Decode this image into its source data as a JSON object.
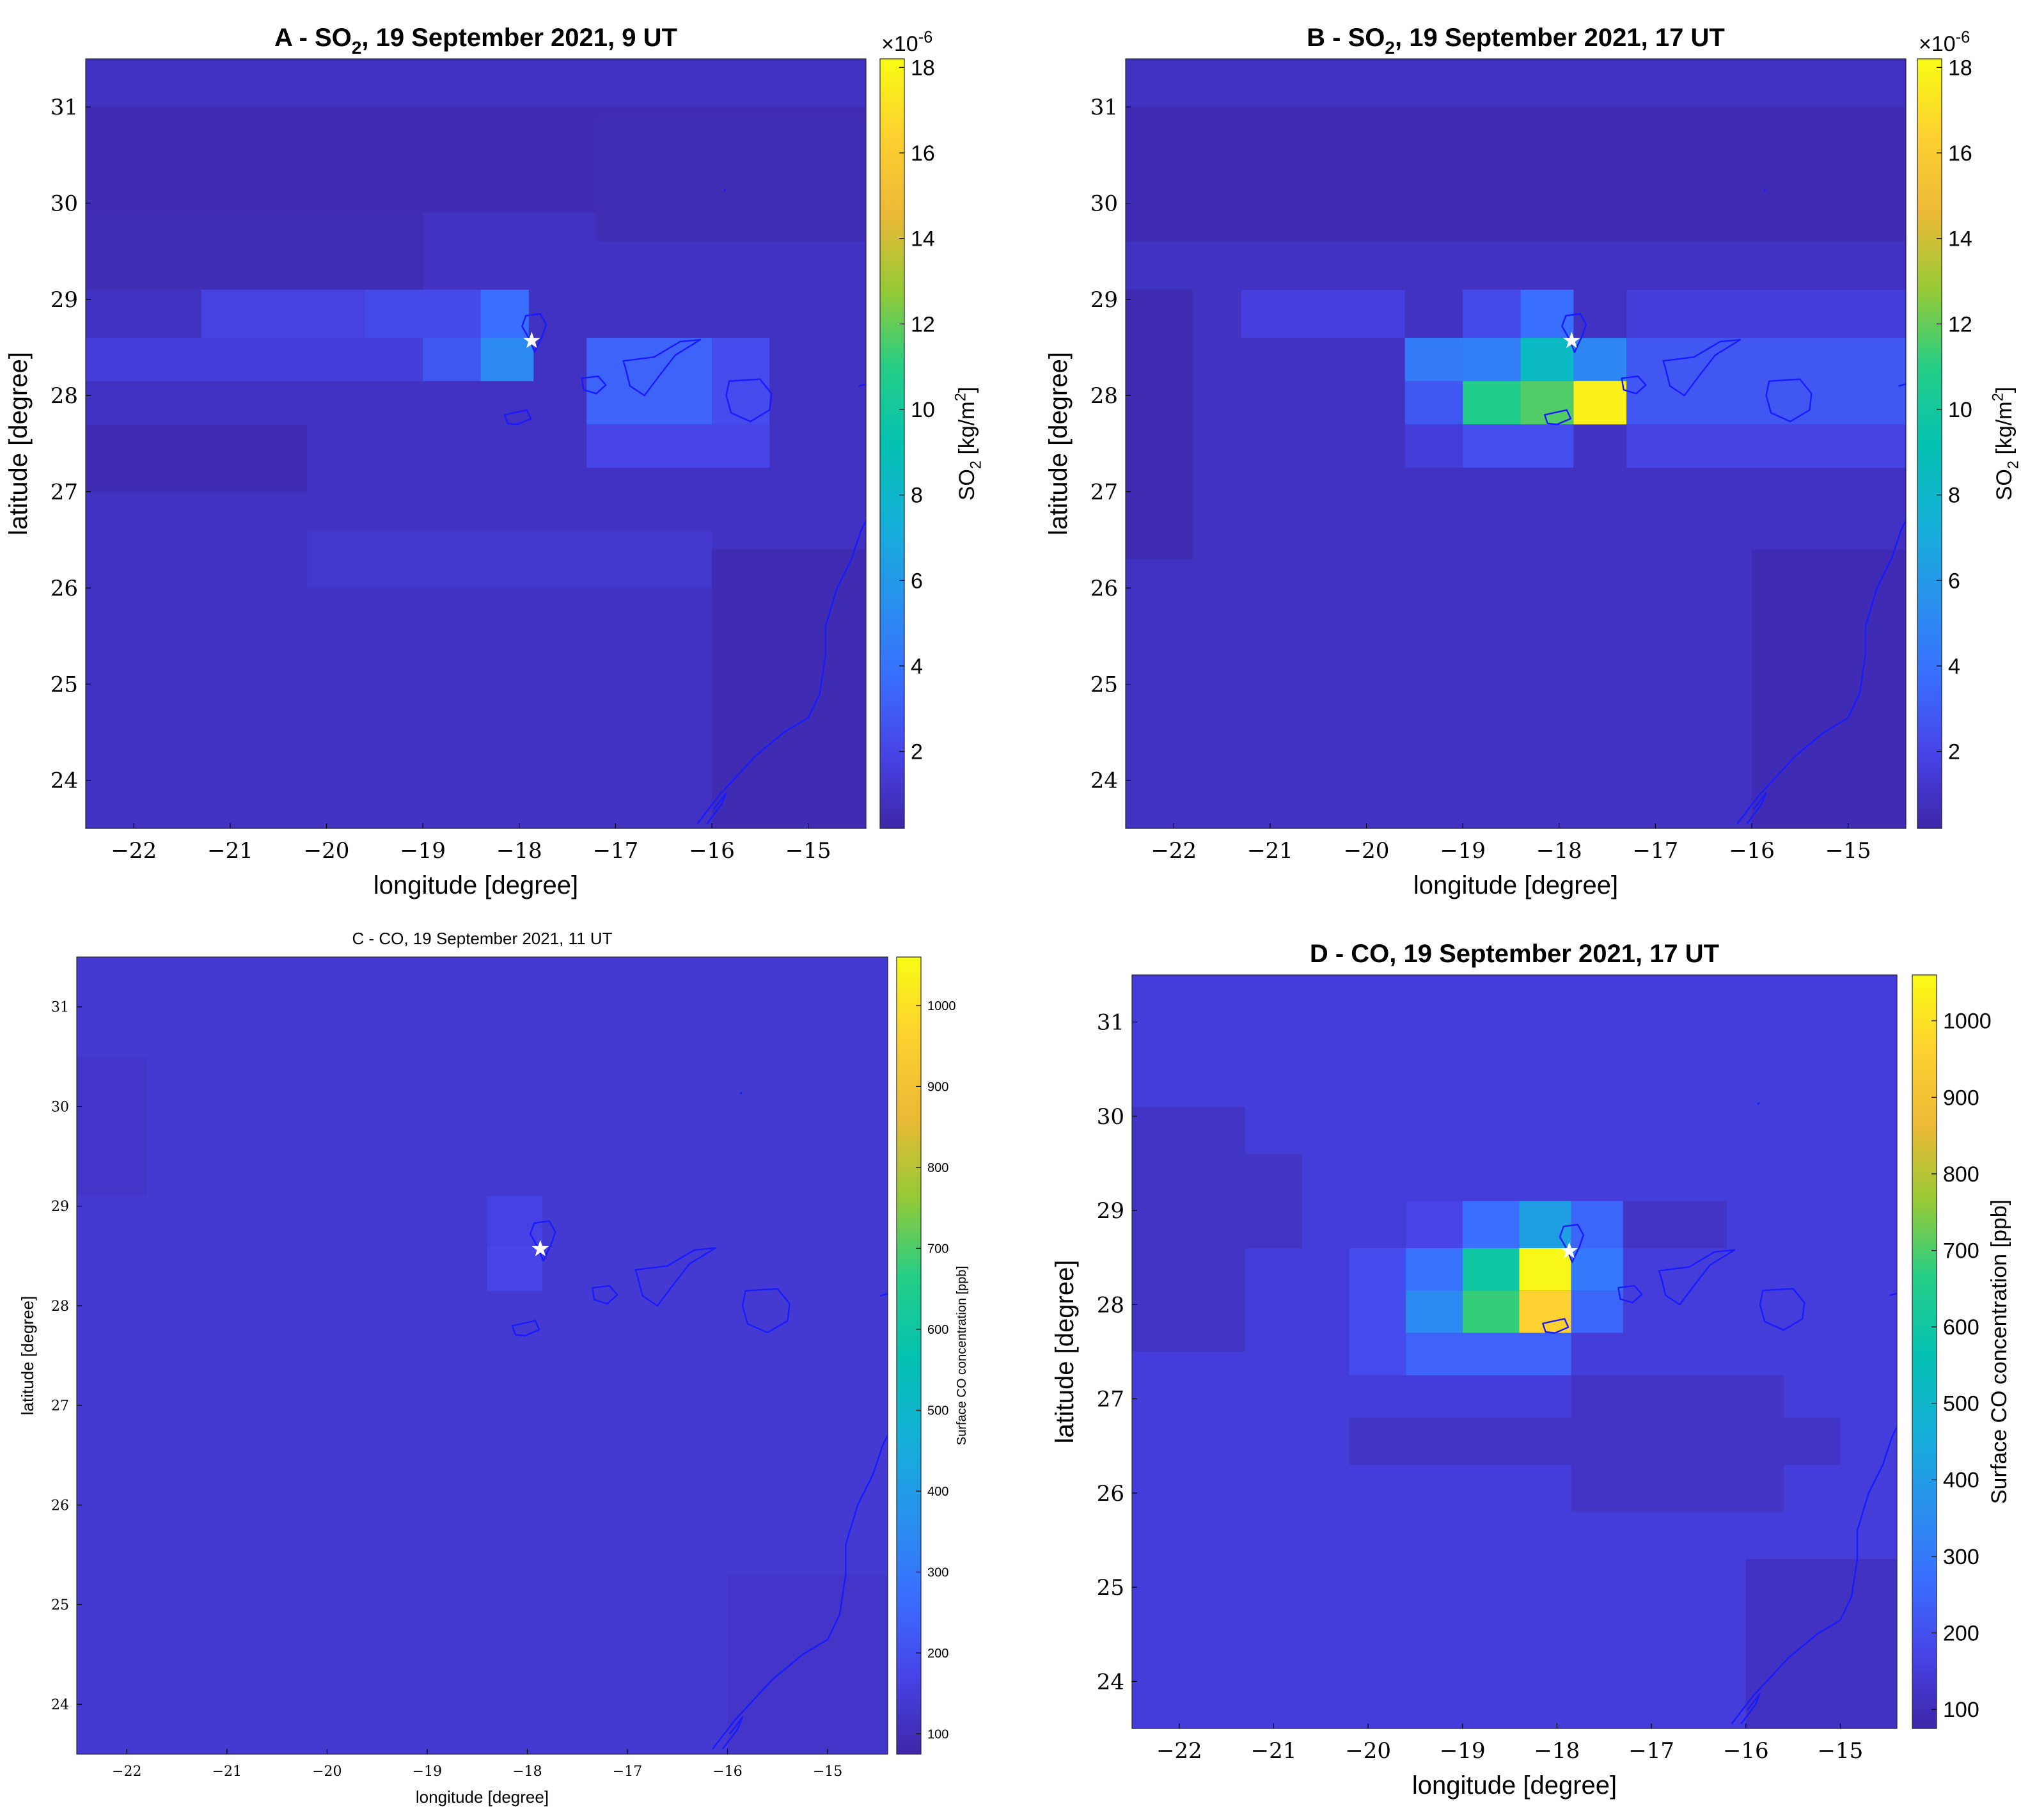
{
  "chart_data": [
    {
      "type": "heatmap",
      "title": "A - SO₂, 19 September 2021, 9 UT",
      "title_parts": {
        "pre": "A - SO",
        "sub": "2",
        "post": ", 19 September 2021, 9 UT"
      },
      "xlabel": "longitude [degree]",
      "ylabel": "latitude [degree]",
      "colorbar_label": "SO₂ [kg/m²]",
      "colorbar_label_parts": {
        "pre": "SO",
        "sub": "2",
        "mid": " [kg/m",
        "sup": "2",
        "post": "]"
      },
      "colorbar_exponent": "×10⁻⁶",
      "colorbar_exponent_parts": {
        "base": "×10",
        "sup": "-6"
      },
      "clim": [
        0.2,
        18.2
      ],
      "colorbar_ticks": [
        "2",
        "4",
        "6",
        "8",
        "10",
        "12",
        "14",
        "16",
        "18"
      ],
      "xlim": [
        -22.5,
        -14.4
      ],
      "ylim": [
        23.5,
        31.5
      ],
      "x_ticks": [
        "−22",
        "−21",
        "−20",
        "−19",
        "−18",
        "−17",
        "−16",
        "−15"
      ],
      "y_ticks": [
        "24",
        "25",
        "26",
        "27",
        "28",
        "29",
        "30",
        "31"
      ],
      "vent_marker": {
        "lon": -17.87,
        "lat": 28.57
      },
      "cells": [
        {
          "lon": [
            -22.5,
            -14.4
          ],
          "lat": [
            23.5,
            31.5
          ],
          "value": 0.9
        },
        {
          "lon": [
            -22.5,
            -14.4
          ],
          "lat": [
            29.9,
            31.0
          ],
          "value": 0.55
        },
        {
          "lon": [
            -22.5,
            -19.0
          ],
          "lat": [
            29.1,
            29.9
          ],
          "value": 0.6
        },
        {
          "lon": [
            -17.2,
            -14.4
          ],
          "lat": [
            29.6,
            30.9
          ],
          "value": 0.6
        },
        {
          "lon": [
            -21.3,
            -19.6
          ],
          "lat": [
            28.6,
            29.1
          ],
          "value": 1.8
        },
        {
          "lon": [
            -19.6,
            -18.4
          ],
          "lat": [
            28.6,
            29.1
          ],
          "value": 2.2
        },
        {
          "lon": [
            -18.4,
            -17.9
          ],
          "lat": [
            28.6,
            29.1
          ],
          "value": 3.8
        },
        {
          "lon": [
            -22.5,
            -19.0
          ],
          "lat": [
            28.15,
            28.6
          ],
          "value": 1.6
        },
        {
          "lon": [
            -19.0,
            -18.4
          ],
          "lat": [
            28.15,
            28.6
          ],
          "value": 2.8
        },
        {
          "lon": [
            -18.4,
            -17.85
          ],
          "lat": [
            28.15,
            28.6
          ],
          "value": 5.2
        },
        {
          "lon": [
            -17.3,
            -16.0
          ],
          "lat": [
            27.7,
            28.6
          ],
          "value": 3.3
        },
        {
          "lon": [
            -16.0,
            -15.4
          ],
          "lat": [
            27.7,
            28.6
          ],
          "value": 2.3
        },
        {
          "lon": [
            -17.3,
            -15.4
          ],
          "lat": [
            27.25,
            27.7
          ],
          "value": 2.0
        },
        {
          "lon": [
            -22.5,
            -20.2
          ],
          "lat": [
            27.0,
            27.7
          ],
          "value": 0.5
        },
        {
          "lon": [
            -20.2,
            -16.0
          ],
          "lat": [
            26.0,
            26.6
          ],
          "value": 1.2
        },
        {
          "lon": [
            -16.0,
            -14.4
          ],
          "lat": [
            23.5,
            26.4
          ],
          "value": 0.5
        }
      ]
    },
    {
      "type": "heatmap",
      "title": "B - SO₂, 19 September 2021, 17 UT",
      "title_parts": {
        "pre": "B - SO",
        "sub": "2",
        "post": ", 19 September 2021, 17 UT"
      },
      "xlabel": "longitude [degree]",
      "ylabel": "latitude [degree]",
      "colorbar_label": "SO₂ [kg/m²]",
      "colorbar_label_parts": {
        "pre": "SO",
        "sub": "2",
        "mid": " [kg/m",
        "sup": "2",
        "post": "]"
      },
      "colorbar_exponent": "×10⁻⁶",
      "colorbar_exponent_parts": {
        "base": "×10",
        "sup": "-6"
      },
      "clim": [
        0.2,
        18.2
      ],
      "colorbar_ticks": [
        "2",
        "4",
        "6",
        "8",
        "10",
        "12",
        "14",
        "16",
        "18"
      ],
      "xlim": [
        -22.5,
        -14.4
      ],
      "ylim": [
        23.5,
        31.5
      ],
      "x_ticks": [
        "−22",
        "−21",
        "−20",
        "−19",
        "−18",
        "−17",
        "−16",
        "−15"
      ],
      "y_ticks": [
        "24",
        "25",
        "26",
        "27",
        "28",
        "29",
        "30",
        "31"
      ],
      "vent_marker": {
        "lon": -17.87,
        "lat": 28.57
      },
      "cells": [
        {
          "lon": [
            -22.5,
            -14.4
          ],
          "lat": [
            23.5,
            31.5
          ],
          "value": 0.9
        },
        {
          "lon": [
            -22.5,
            -14.4
          ],
          "lat": [
            29.6,
            31.0
          ],
          "value": 0.55
        },
        {
          "lon": [
            -22.5,
            -21.8
          ],
          "lat": [
            26.3,
            29.1
          ],
          "value": 0.5
        },
        {
          "lon": [
            -21.3,
            -19.6
          ],
          "lat": [
            28.6,
            29.1
          ],
          "value": 1.7
        },
        {
          "lon": [
            -17.3,
            -14.4
          ],
          "lat": [
            28.6,
            29.1
          ],
          "value": 1.6
        },
        {
          "lon": [
            -19.6,
            -19.0
          ],
          "lat": [
            27.25,
            28.6
          ],
          "value": 2.0
        },
        {
          "lon": [
            -19.0,
            -18.4
          ],
          "lat": [
            28.6,
            29.1
          ],
          "value": 2.2
        },
        {
          "lon": [
            -18.4,
            -17.85
          ],
          "lat": [
            28.6,
            29.1
          ],
          "value": 3.8
        },
        {
          "lon": [
            -19.6,
            -19.0
          ],
          "lat": [
            28.15,
            28.6
          ],
          "value": 4.4
        },
        {
          "lon": [
            -19.0,
            -18.4
          ],
          "lat": [
            28.15,
            28.6
          ],
          "value": 4.6
        },
        {
          "lon": [
            -18.4,
            -17.85
          ],
          "lat": [
            28.15,
            28.6
          ],
          "value": 8.4
        },
        {
          "lon": [
            -17.85,
            -17.3
          ],
          "lat": [
            28.15,
            28.6
          ],
          "value": 5.0
        },
        {
          "lon": [
            -19.6,
            -19.0
          ],
          "lat": [
            27.7,
            28.15
          ],
          "value": 2.8
        },
        {
          "lon": [
            -19.0,
            -18.4
          ],
          "lat": [
            27.7,
            28.15
          ],
          "value": 10.8
        },
        {
          "lon": [
            -18.4,
            -17.85
          ],
          "lat": [
            27.7,
            28.15
          ],
          "value": 11.7
        },
        {
          "lon": [
            -17.85,
            -17.3
          ],
          "lat": [
            27.7,
            28.15
          ],
          "value": 17.8
        },
        {
          "lon": [
            -17.3,
            -14.4
          ],
          "lat": [
            27.7,
            28.6
          ],
          "value": 2.8
        },
        {
          "lon": [
            -19.6,
            -19.0
          ],
          "lat": [
            27.25,
            27.7
          ],
          "value": 1.6
        },
        {
          "lon": [
            -19.0,
            -17.85
          ],
          "lat": [
            27.25,
            27.7
          ],
          "value": 2.4
        },
        {
          "lon": [
            -17.3,
            -14.4
          ],
          "lat": [
            27.25,
            27.7
          ],
          "value": 1.8
        },
        {
          "lon": [
            -16.0,
            -14.4
          ],
          "lat": [
            23.5,
            26.4
          ],
          "value": 0.55
        }
      ]
    },
    {
      "type": "heatmap",
      "title": "C - CO, 19 September 2021, 11 UT",
      "xlabel": "longitude [degree]",
      "ylabel": "latitude [degree]",
      "colorbar_label": "Surface CO concentration [ppb]",
      "clim": [
        75,
        1060
      ],
      "colorbar_ticks": [
        "100",
        "200",
        "300",
        "400",
        "500",
        "600",
        "700",
        "800",
        "900",
        "1000"
      ],
      "xlim": [
        -22.5,
        -14.4
      ],
      "ylim": [
        23.5,
        31.5
      ],
      "x_ticks": [
        "−22",
        "−21",
        "−20",
        "−19",
        "−18",
        "−17",
        "−16",
        "−15"
      ],
      "y_ticks": [
        "24",
        "25",
        "26",
        "27",
        "28",
        "29",
        "30",
        "31"
      ],
      "vent_marker": {
        "lon": -17.87,
        "lat": 28.57
      },
      "cells": [
        {
          "lon": [
            -22.5,
            -14.4
          ],
          "lat": [
            23.5,
            31.5
          ],
          "value": 140
        },
        {
          "lon": [
            -22.5,
            -21.8
          ],
          "lat": [
            29.1,
            30.5
          ],
          "value": 125
        },
        {
          "lon": [
            -18.4,
            -17.85
          ],
          "lat": [
            28.6,
            29.1
          ],
          "value": 165
        },
        {
          "lon": [
            -18.4,
            -17.85
          ],
          "lat": [
            28.15,
            28.6
          ],
          "value": 175
        },
        {
          "lon": [
            -16.0,
            -14.4
          ],
          "lat": [
            23.5,
            25.3
          ],
          "value": 125
        }
      ]
    },
    {
      "type": "heatmap",
      "title": "D - CO, 19 September 2021, 17 UT",
      "xlabel": "longitude [degree]",
      "ylabel": "latitude [degree]",
      "colorbar_label": "Surface CO concentration [ppb]",
      "clim": [
        75,
        1060
      ],
      "colorbar_ticks": [
        "100",
        "200",
        "300",
        "400",
        "500",
        "600",
        "700",
        "800",
        "900",
        "1000"
      ],
      "xlim": [
        -22.5,
        -14.4
      ],
      "ylim": [
        23.5,
        31.5
      ],
      "x_ticks": [
        "−22",
        "−21",
        "−20",
        "−19",
        "−18",
        "−17",
        "−16",
        "−15"
      ],
      "y_ticks": [
        "24",
        "25",
        "26",
        "27",
        "28",
        "29",
        "30",
        "31"
      ],
      "vent_marker": {
        "lon": -17.87,
        "lat": 28.57
      },
      "cells": [
        {
          "lon": [
            -22.5,
            -14.4
          ],
          "lat": [
            23.5,
            31.5
          ],
          "value": 150
        },
        {
          "lon": [
            -22.5,
            -21.3
          ],
          "lat": [
            27.5,
            30.1
          ],
          "value": 120
        },
        {
          "lon": [
            -21.3,
            -20.7
          ],
          "lat": [
            28.6,
            29.6
          ],
          "value": 120
        },
        {
          "lon": [
            -20.2,
            -15.0
          ],
          "lat": [
            26.3,
            26.8
          ],
          "value": 120
        },
        {
          "lon": [
            -17.85,
            -15.6
          ],
          "lat": [
            25.8,
            27.25
          ],
          "value": 120
        },
        {
          "lon": [
            -17.3,
            -16.2
          ],
          "lat": [
            28.6,
            29.1
          ],
          "value": 120
        },
        {
          "lon": [
            -16.0,
            -14.4
          ],
          "lat": [
            23.5,
            25.3
          ],
          "value": 115
        },
        {
          "lon": [
            -19.6,
            -19.0
          ],
          "lat": [
            28.6,
            29.1
          ],
          "value": 170
        },
        {
          "lon": [
            -19.0,
            -18.4
          ],
          "lat": [
            28.6,
            29.1
          ],
          "value": 270
        },
        {
          "lon": [
            -18.4,
            -17.85
          ],
          "lat": [
            28.6,
            29.1
          ],
          "value": 410
        },
        {
          "lon": [
            -17.85,
            -17.3
          ],
          "lat": [
            28.6,
            29.1
          ],
          "value": 250
        },
        {
          "lon": [
            -20.2,
            -19.6
          ],
          "lat": [
            27.25,
            28.6
          ],
          "value": 190
        },
        {
          "lon": [
            -19.6,
            -19.0
          ],
          "lat": [
            28.15,
            28.6
          ],
          "value": 280
        },
        {
          "lon": [
            -19.0,
            -18.4
          ],
          "lat": [
            28.15,
            28.6
          ],
          "value": 600
        },
        {
          "lon": [
            -18.4,
            -17.85
          ],
          "lat": [
            28.15,
            28.6
          ],
          "value": 1050
        },
        {
          "lon": [
            -17.85,
            -17.3
          ],
          "lat": [
            28.15,
            28.6
          ],
          "value": 300
        },
        {
          "lon": [
            -19.6,
            -19.0
          ],
          "lat": [
            27.7,
            28.15
          ],
          "value": 350
        },
        {
          "lon": [
            -19.0,
            -18.4
          ],
          "lat": [
            27.7,
            28.15
          ],
          "value": 680
        },
        {
          "lon": [
            -18.4,
            -17.85
          ],
          "lat": [
            27.7,
            28.15
          ],
          "value": 960
        },
        {
          "lon": [
            -17.85,
            -17.3
          ],
          "lat": [
            27.7,
            28.15
          ],
          "value": 250
        },
        {
          "lon": [
            -19.6,
            -17.85
          ],
          "lat": [
            27.25,
            27.7
          ],
          "value": 240
        }
      ]
    }
  ]
}
